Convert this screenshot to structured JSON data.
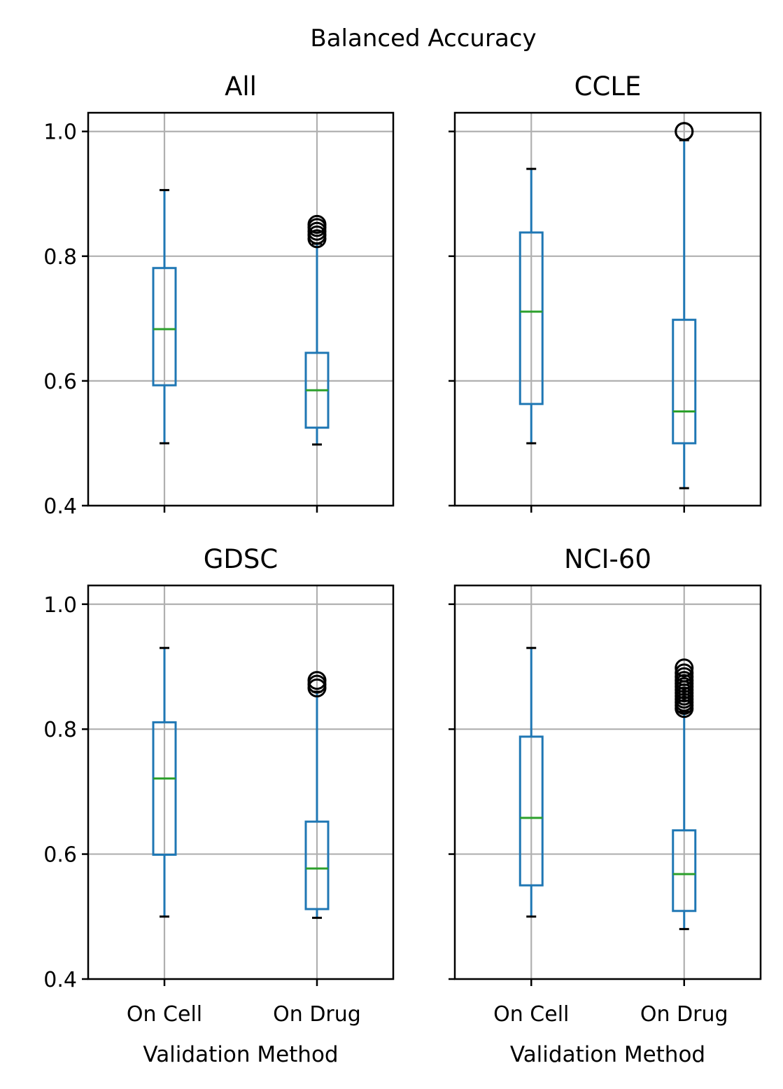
{
  "figure": {
    "suptitle": "Balanced Accuracy"
  },
  "colors": {
    "box": "#1f77b4",
    "median": "#2ca02c",
    "grid": "#b0b0b0",
    "axes": "#000000"
  },
  "chart_data": [
    {
      "type": "box",
      "title": "All",
      "categories": [
        "On Cell",
        "On Drug"
      ],
      "xlabel": "",
      "ylabel": "",
      "ylim": [
        0.4,
        1.03
      ],
      "yticks": [
        "0.4",
        "0.6",
        "0.8",
        "1.0"
      ],
      "grid": true,
      "boxes": [
        {
          "whislo": 0.5,
          "q1": 0.593,
          "med": 0.683,
          "q3": 0.781,
          "whishi": 0.906,
          "fliers": []
        },
        {
          "whislo": 0.498,
          "q1": 0.525,
          "med": 0.585,
          "q3": 0.645,
          "whishi": 0.82,
          "fliers": [
            0.828,
            0.834,
            0.84,
            0.846,
            0.851
          ]
        }
      ]
    },
    {
      "type": "box",
      "title": "CCLE",
      "categories": [
        "On Cell",
        "On Drug"
      ],
      "xlabel": "",
      "ylabel": "",
      "ylim": [
        0.4,
        1.03
      ],
      "yticks": [],
      "grid": true,
      "boxes": [
        {
          "whislo": 0.5,
          "q1": 0.563,
          "med": 0.711,
          "q3": 0.838,
          "whishi": 0.94,
          "fliers": []
        },
        {
          "whislo": 0.428,
          "q1": 0.5,
          "med": 0.551,
          "q3": 0.698,
          "whishi": 0.986,
          "fliers": [
            1.0,
            1.0
          ]
        }
      ]
    },
    {
      "type": "box",
      "title": "GDSC",
      "categories": [
        "On Cell",
        "On Drug"
      ],
      "xlabel": "Validation Method",
      "ylabel": "",
      "ylim": [
        0.4,
        1.03
      ],
      "yticks": [
        "0.4",
        "0.6",
        "0.8",
        "1.0"
      ],
      "grid": true,
      "boxes": [
        {
          "whislo": 0.5,
          "q1": 0.599,
          "med": 0.721,
          "q3": 0.811,
          "whishi": 0.93,
          "fliers": []
        },
        {
          "whislo": 0.498,
          "q1": 0.512,
          "med": 0.577,
          "q3": 0.652,
          "whishi": 0.86,
          "fliers": [
            0.866,
            0.872,
            0.878
          ]
        }
      ]
    },
    {
      "type": "box",
      "title": "NCI-60",
      "categories": [
        "On Cell",
        "On Drug"
      ],
      "xlabel": "Validation Method",
      "ylabel": "",
      "ylim": [
        0.4,
        1.03
      ],
      "yticks": [],
      "grid": true,
      "boxes": [
        {
          "whislo": 0.5,
          "q1": 0.55,
          "med": 0.658,
          "q3": 0.788,
          "whishi": 0.93,
          "fliers": []
        },
        {
          "whislo": 0.48,
          "q1": 0.509,
          "med": 0.568,
          "q3": 0.638,
          "whishi": 0.828,
          "fliers": [
            0.833,
            0.838,
            0.843,
            0.848,
            0.853,
            0.858,
            0.863,
            0.868,
            0.873,
            0.878,
            0.884,
            0.89,
            0.898
          ]
        }
      ]
    }
  ]
}
